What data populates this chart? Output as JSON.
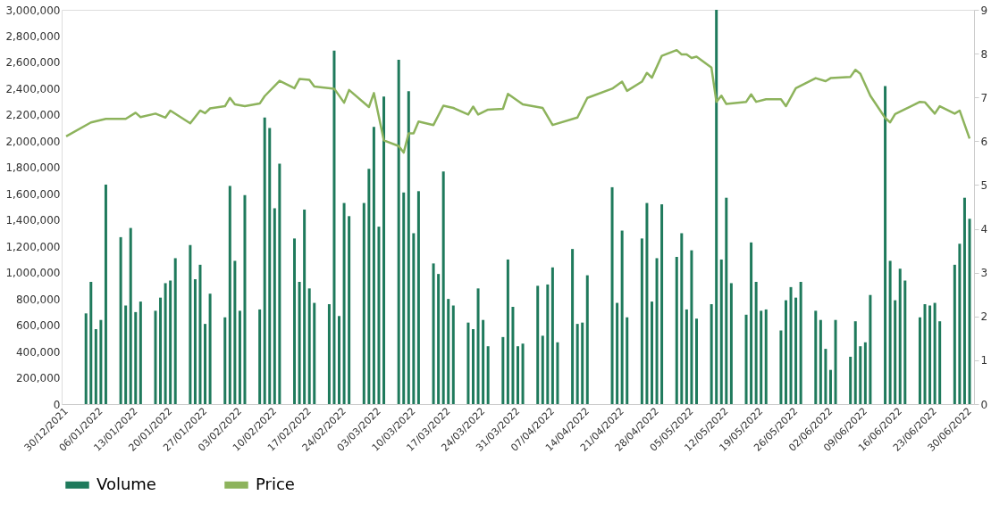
{
  "chart_data": {
    "type": "bar",
    "legend": "bottom",
    "grid": false,
    "xlim": [
      "2021-12-30",
      "2022-06-30"
    ],
    "xticks": [
      {
        "value": "2021-12-30",
        "label": "30/12/2021"
      },
      {
        "value": "2022-01-06",
        "label": "06/01/2022"
      },
      {
        "value": "2022-01-13",
        "label": "13/01/2022"
      },
      {
        "value": "2022-01-20",
        "label": "20/01/2022"
      },
      {
        "value": "2022-01-27",
        "label": "27/01/2022"
      },
      {
        "value": "2022-02-03",
        "label": "03/02/2022"
      },
      {
        "value": "2022-02-10",
        "label": "10/02/2022"
      },
      {
        "value": "2022-02-17",
        "label": "17/02/2022"
      },
      {
        "value": "2022-02-24",
        "label": "24/02/2022"
      },
      {
        "value": "2022-03-03",
        "label": "03/03/2022"
      },
      {
        "value": "2022-03-10",
        "label": "10/03/2022"
      },
      {
        "value": "2022-03-17",
        "label": "17/03/2022"
      },
      {
        "value": "2022-03-24",
        "label": "24/03/2022"
      },
      {
        "value": "2022-03-31",
        "label": "31/03/2022"
      },
      {
        "value": "2022-04-07",
        "label": "07/04/2022"
      },
      {
        "value": "2022-04-14",
        "label": "14/04/2022"
      },
      {
        "value": "2022-04-21",
        "label": "21/04/2022"
      },
      {
        "value": "2022-04-28",
        "label": "28/04/2022"
      },
      {
        "value": "2022-05-05",
        "label": "05/05/2022"
      },
      {
        "value": "2022-05-12",
        "label": "12/05/2022"
      },
      {
        "value": "2022-05-19",
        "label": "19/05/2022"
      },
      {
        "value": "2022-05-26",
        "label": "26/05/2022"
      },
      {
        "value": "2022-06-02",
        "label": "02/06/2022"
      },
      {
        "value": "2022-06-09",
        "label": "09/06/2022"
      },
      {
        "value": "2022-06-16",
        "label": "16/06/2022"
      },
      {
        "value": "2022-06-23",
        "label": "23/06/2022"
      },
      {
        "value": "2022-06-30",
        "label": "30/06/2022"
      }
    ],
    "ylim": [
      0,
      3000000
    ],
    "yticks": [
      {
        "value": 0,
        "label": "0"
      },
      {
        "value": 200000,
        "label": "200,000"
      },
      {
        "value": 400000,
        "label": "400,000"
      },
      {
        "value": 600000,
        "label": "600,000"
      },
      {
        "value": 800000,
        "label": "800,000"
      },
      {
        "value": 1000000,
        "label": "1,000,000"
      },
      {
        "value": 1200000,
        "label": "1,200,000"
      },
      {
        "value": 1400000,
        "label": "1,400,000"
      },
      {
        "value": 1600000,
        "label": "1,600,000"
      },
      {
        "value": 1800000,
        "label": "1,800,000"
      },
      {
        "value": 2000000,
        "label": "2,000,000"
      },
      {
        "value": 2200000,
        "label": "2,200,000"
      },
      {
        "value": 2400000,
        "label": "2,400,000"
      },
      {
        "value": 2600000,
        "label": "2,600,000"
      },
      {
        "value": 2800000,
        "label": "2,800,000"
      },
      {
        "value": 3000000,
        "label": "3,000,000"
      }
    ],
    "y2lim": [
      0,
      9
    ],
    "y2ticks": [
      0,
      1,
      2,
      3,
      4,
      5,
      6,
      7,
      8,
      9
    ],
    "series": [
      {
        "name": "Volume",
        "color": "#1f7a5c",
        "x": [
          "2022-01-03",
          "2022-01-04",
          "2022-01-05",
          "2022-01-06",
          "2022-01-07",
          "2022-01-10",
          "2022-01-11",
          "2022-01-12",
          "2022-01-13",
          "2022-01-14",
          "2022-01-17",
          "2022-01-18",
          "2022-01-19",
          "2022-01-20",
          "2022-01-21",
          "2022-01-24",
          "2022-01-25",
          "2022-01-26",
          "2022-01-27",
          "2022-01-28",
          "2022-01-31",
          "2022-02-01",
          "2022-02-02",
          "2022-02-03",
          "2022-02-04",
          "2022-02-07",
          "2022-02-08",
          "2022-02-09",
          "2022-02-10",
          "2022-02-11",
          "2022-02-14",
          "2022-02-15",
          "2022-02-16",
          "2022-02-17",
          "2022-02-18",
          "2022-02-21",
          "2022-02-22",
          "2022-02-23",
          "2022-02-24",
          "2022-02-25",
          "2022-02-28",
          "2022-03-01",
          "2022-03-02",
          "2022-03-03",
          "2022-03-04",
          "2022-03-07",
          "2022-03-08",
          "2022-03-09",
          "2022-03-10",
          "2022-03-11",
          "2022-03-14",
          "2022-03-15",
          "2022-03-16",
          "2022-03-17",
          "2022-03-18",
          "2022-03-21",
          "2022-03-22",
          "2022-03-23",
          "2022-03-24",
          "2022-03-25",
          "2022-03-28",
          "2022-03-29",
          "2022-03-30",
          "2022-03-31",
          "2022-04-01",
          "2022-04-04",
          "2022-04-05",
          "2022-04-06",
          "2022-04-07",
          "2022-04-08",
          "2022-04-11",
          "2022-04-12",
          "2022-04-13",
          "2022-04-14",
          "2022-04-19",
          "2022-04-20",
          "2022-04-21",
          "2022-04-22",
          "2022-04-25",
          "2022-04-26",
          "2022-04-27",
          "2022-04-28",
          "2022-04-29",
          "2022-05-02",
          "2022-05-03",
          "2022-05-04",
          "2022-05-05",
          "2022-05-06",
          "2022-05-09",
          "2022-05-10",
          "2022-05-11",
          "2022-05-12",
          "2022-05-13",
          "2022-05-16",
          "2022-05-17",
          "2022-05-18",
          "2022-05-19",
          "2022-05-20",
          "2022-05-23",
          "2022-05-24",
          "2022-05-25",
          "2022-05-26",
          "2022-05-27",
          "2022-05-30",
          "2022-05-31",
          "2022-06-01",
          "2022-06-02",
          "2022-06-03",
          "2022-06-06",
          "2022-06-07",
          "2022-06-08",
          "2022-06-09",
          "2022-06-10",
          "2022-06-13",
          "2022-06-14",
          "2022-06-15",
          "2022-06-16",
          "2022-06-17",
          "2022-06-20",
          "2022-06-21",
          "2022-06-22",
          "2022-06-23",
          "2022-06-24",
          "2022-06-27",
          "2022-06-28",
          "2022-06-29",
          "2022-06-30"
        ],
        "values": [
          690000,
          930000,
          570000,
          640000,
          1670000,
          1270000,
          750000,
          1340000,
          700000,
          780000,
          710000,
          810000,
          920000,
          940000,
          1110000,
          1210000,
          950000,
          1060000,
          610000,
          840000,
          660000,
          1660000,
          1090000,
          710000,
          1590000,
          720000,
          2180000,
          2100000,
          1490000,
          1830000,
          1260000,
          930000,
          1480000,
          880000,
          770000,
          760000,
          2690000,
          670000,
          1530000,
          1430000,
          1530000,
          1790000,
          2110000,
          1350000,
          2340000,
          2620000,
          1610000,
          2380000,
          1300000,
          1620000,
          1070000,
          990000,
          1770000,
          800000,
          750000,
          620000,
          570000,
          880000,
          640000,
          440000,
          510000,
          1100000,
          740000,
          440000,
          460000,
          900000,
          520000,
          910000,
          1040000,
          470000,
          1180000,
          610000,
          620000,
          980000,
          1650000,
          770000,
          1320000,
          660000,
          1260000,
          1530000,
          780000,
          1110000,
          1520000,
          1120000,
          1300000,
          720000,
          1170000,
          650000,
          760000,
          3000000,
          1100000,
          1570000,
          920000,
          680000,
          1230000,
          930000,
          710000,
          720000,
          560000,
          790000,
          890000,
          810000,
          930000,
          710000,
          640000,
          420000,
          260000,
          640000,
          360000,
          630000,
          440000,
          470000,
          830000,
          2420000,
          1090000,
          790000,
          1030000,
          940000,
          660000,
          760000,
          750000,
          770000,
          630000,
          1060000,
          1220000,
          1570000,
          1410000
        ]
      },
      {
        "name": "Price",
        "type": "line",
        "axis": "y2",
        "color": "#8db35c",
        "x": [
          "2021-12-30",
          "2022-01-04",
          "2022-01-07",
          "2022-01-11",
          "2022-01-13",
          "2022-01-14",
          "2022-01-17",
          "2022-01-19",
          "2022-01-20",
          "2022-01-24",
          "2022-01-26",
          "2022-01-27",
          "2022-01-28",
          "2022-01-31",
          "2022-02-01",
          "2022-02-02",
          "2022-02-04",
          "2022-02-07",
          "2022-02-08",
          "2022-02-11",
          "2022-02-14",
          "2022-02-15",
          "2022-02-17",
          "2022-02-18",
          "2022-02-22",
          "2022-02-24",
          "2022-02-25",
          "2022-03-01",
          "2022-03-02",
          "2022-03-04",
          "2022-03-07",
          "2022-03-08",
          "2022-03-09",
          "2022-03-10",
          "2022-03-11",
          "2022-03-14",
          "2022-03-16",
          "2022-03-18",
          "2022-03-21",
          "2022-03-22",
          "2022-03-23",
          "2022-03-25",
          "2022-03-28",
          "2022-03-29",
          "2022-04-01",
          "2022-04-05",
          "2022-04-07",
          "2022-04-12",
          "2022-04-14",
          "2022-04-19",
          "2022-04-21",
          "2022-04-22",
          "2022-04-25",
          "2022-04-26",
          "2022-04-27",
          "2022-04-29",
          "2022-05-02",
          "2022-05-03",
          "2022-05-04",
          "2022-05-05",
          "2022-05-06",
          "2022-05-09",
          "2022-05-10",
          "2022-05-11",
          "2022-05-12",
          "2022-05-16",
          "2022-05-17",
          "2022-05-18",
          "2022-05-20",
          "2022-05-23",
          "2022-05-24",
          "2022-05-26",
          "2022-05-30",
          "2022-06-01",
          "2022-06-02",
          "2022-06-06",
          "2022-06-07",
          "2022-06-08",
          "2022-06-10",
          "2022-06-13",
          "2022-06-14",
          "2022-06-15",
          "2022-06-17",
          "2022-06-20",
          "2022-06-21",
          "2022-06-23",
          "2022-06-24",
          "2022-06-27",
          "2022-06-28",
          "2022-06-30"
        ],
        "values": [
          6.11,
          6.43,
          6.51,
          6.51,
          6.65,
          6.55,
          6.63,
          6.54,
          6.7,
          6.41,
          6.7,
          6.64,
          6.75,
          6.8,
          6.99,
          6.84,
          6.8,
          6.86,
          7.03,
          7.38,
          7.21,
          7.42,
          7.4,
          7.25,
          7.2,
          6.88,
          7.17,
          6.78,
          7.1,
          6.02,
          5.89,
          5.74,
          6.18,
          6.18,
          6.45,
          6.37,
          6.81,
          6.76,
          6.61,
          6.79,
          6.61,
          6.72,
          6.74,
          7.08,
          6.84,
          6.76,
          6.37,
          6.54,
          6.99,
          7.2,
          7.36,
          7.15,
          7.36,
          7.56,
          7.45,
          7.95,
          8.08,
          7.98,
          7.98,
          7.9,
          7.93,
          7.68,
          6.9,
          7.04,
          6.85,
          6.9,
          7.07,
          6.9,
          6.96,
          6.96,
          6.8,
          7.21,
          7.44,
          7.37,
          7.44,
          7.47,
          7.63,
          7.54,
          7.04,
          6.53,
          6.43,
          6.62,
          6.73,
          6.9,
          6.89,
          6.63,
          6.8,
          6.63,
          6.7,
          6.06
        ]
      }
    ]
  }
}
